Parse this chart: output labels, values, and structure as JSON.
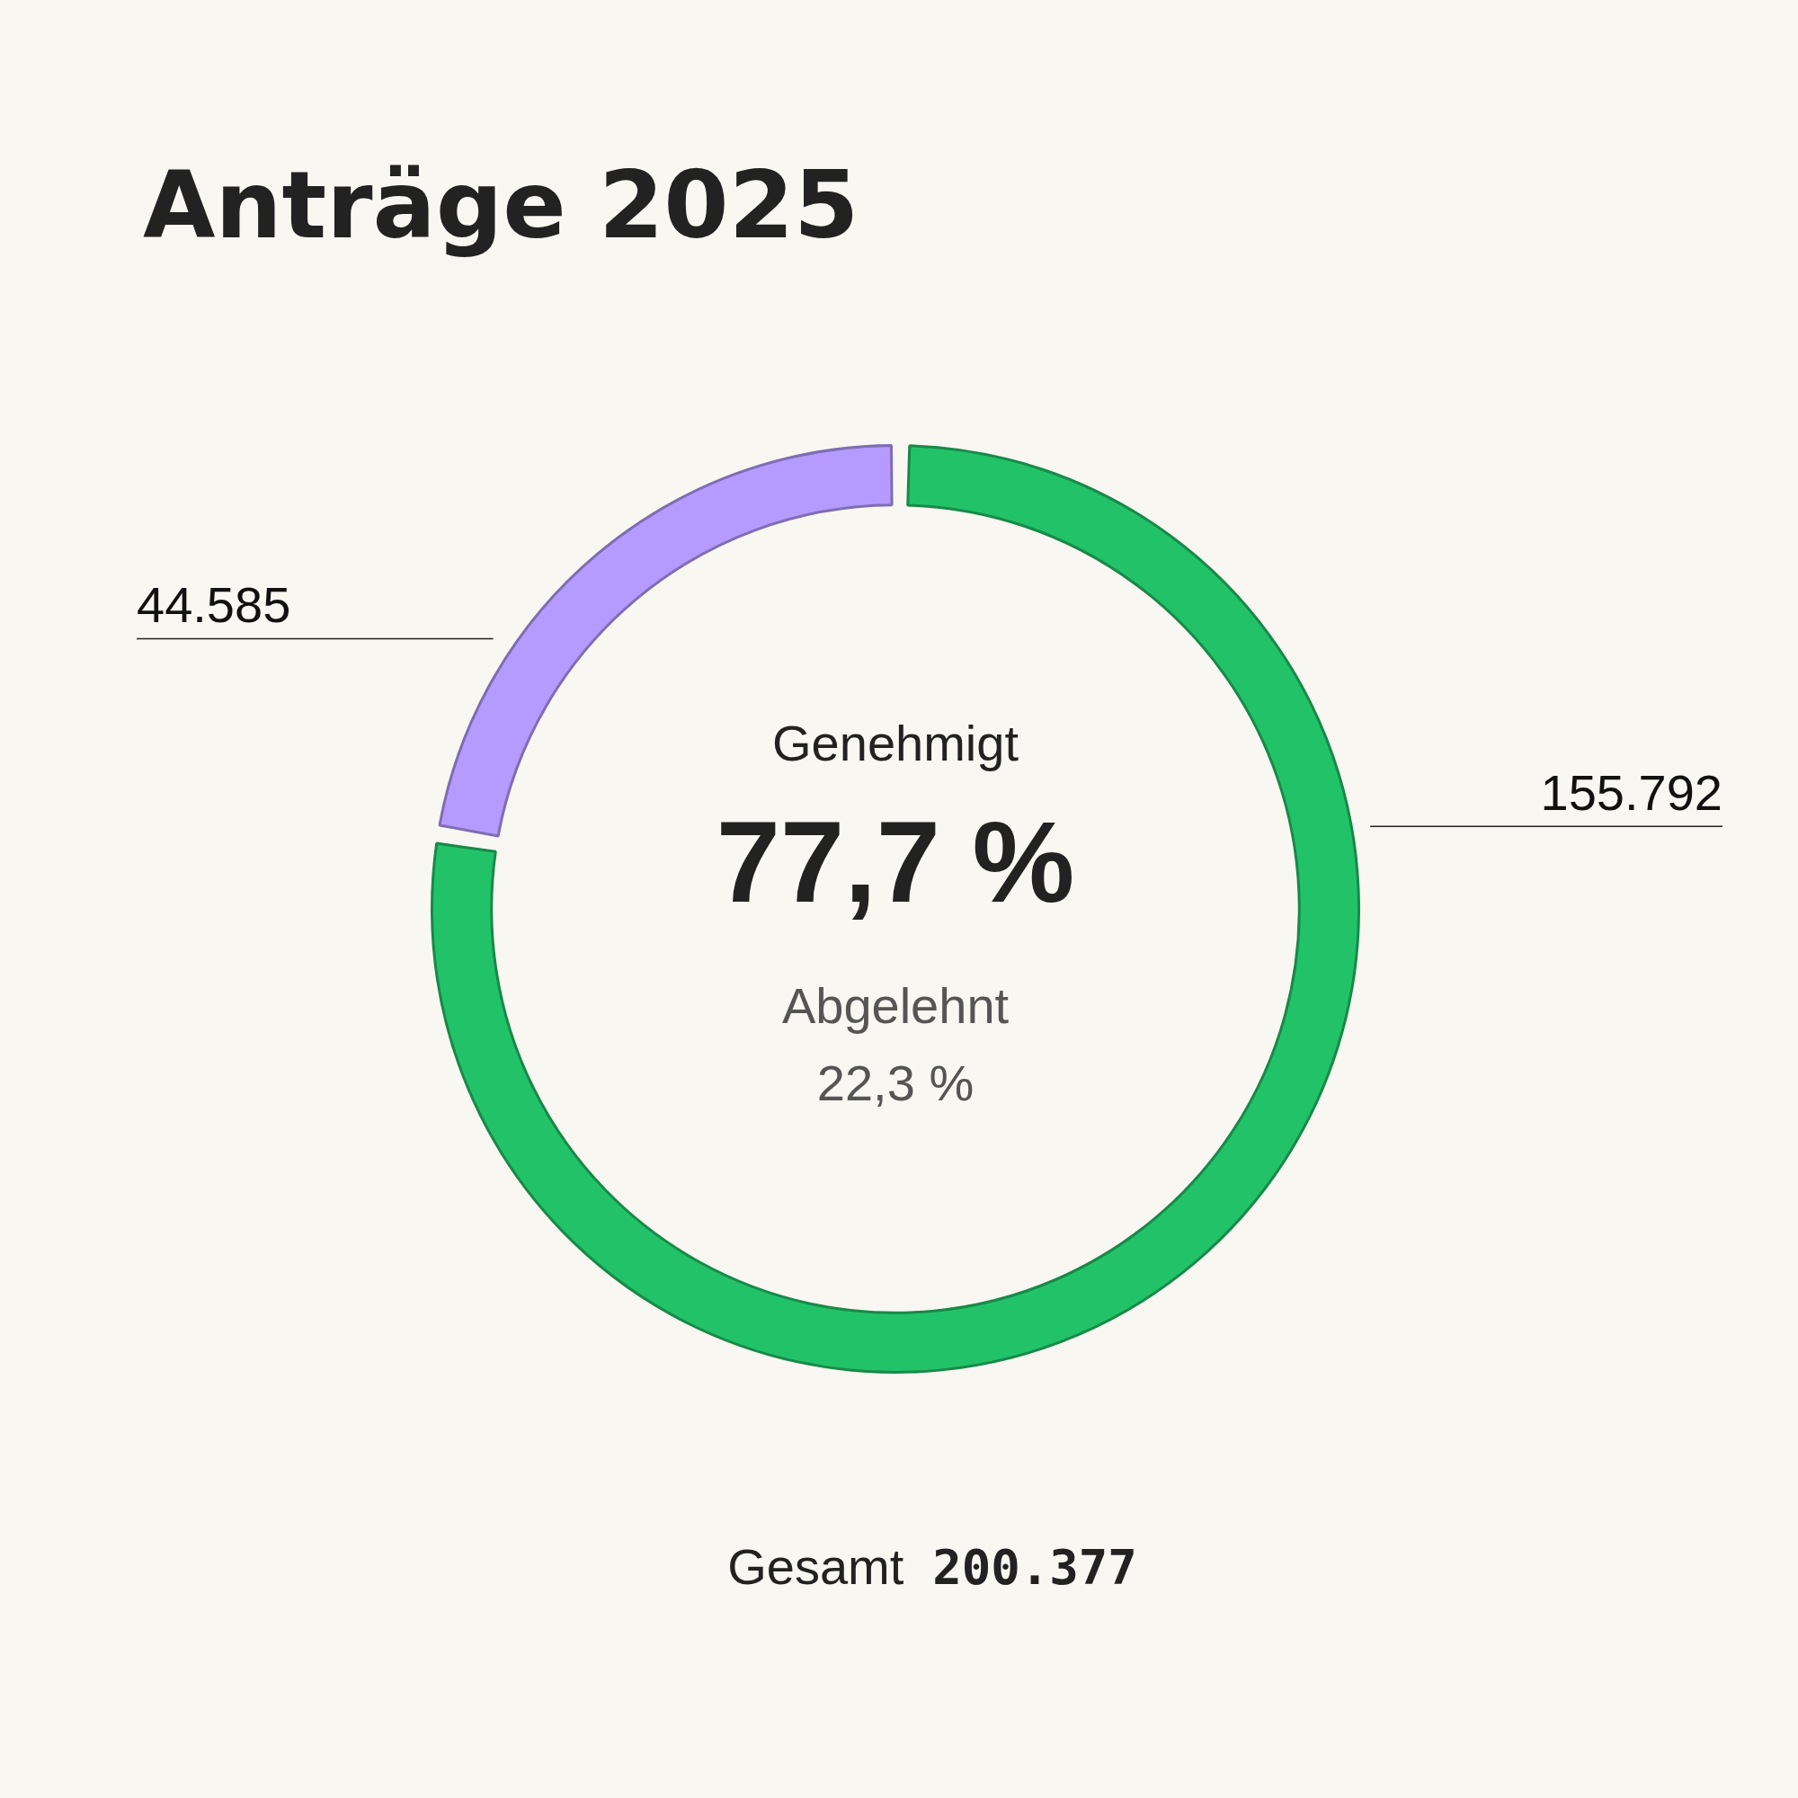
{
  "chart_data": {
    "type": "donut",
    "title": "Anträge 2025",
    "categories": [
      null,
      null
    ],
    "values": [
      155792,
      44585
    ],
    "colors": [
      "#22c368",
      "#b59bff"
    ],
    "value_labels": [
      "155.792",
      "44.585"
    ],
    "annotations": [
      "Genehmigt",
      "77,7 %",
      "Abgelehnt",
      "22,3 %",
      "Gesamt",
      "200.377"
    ]
  }
}
